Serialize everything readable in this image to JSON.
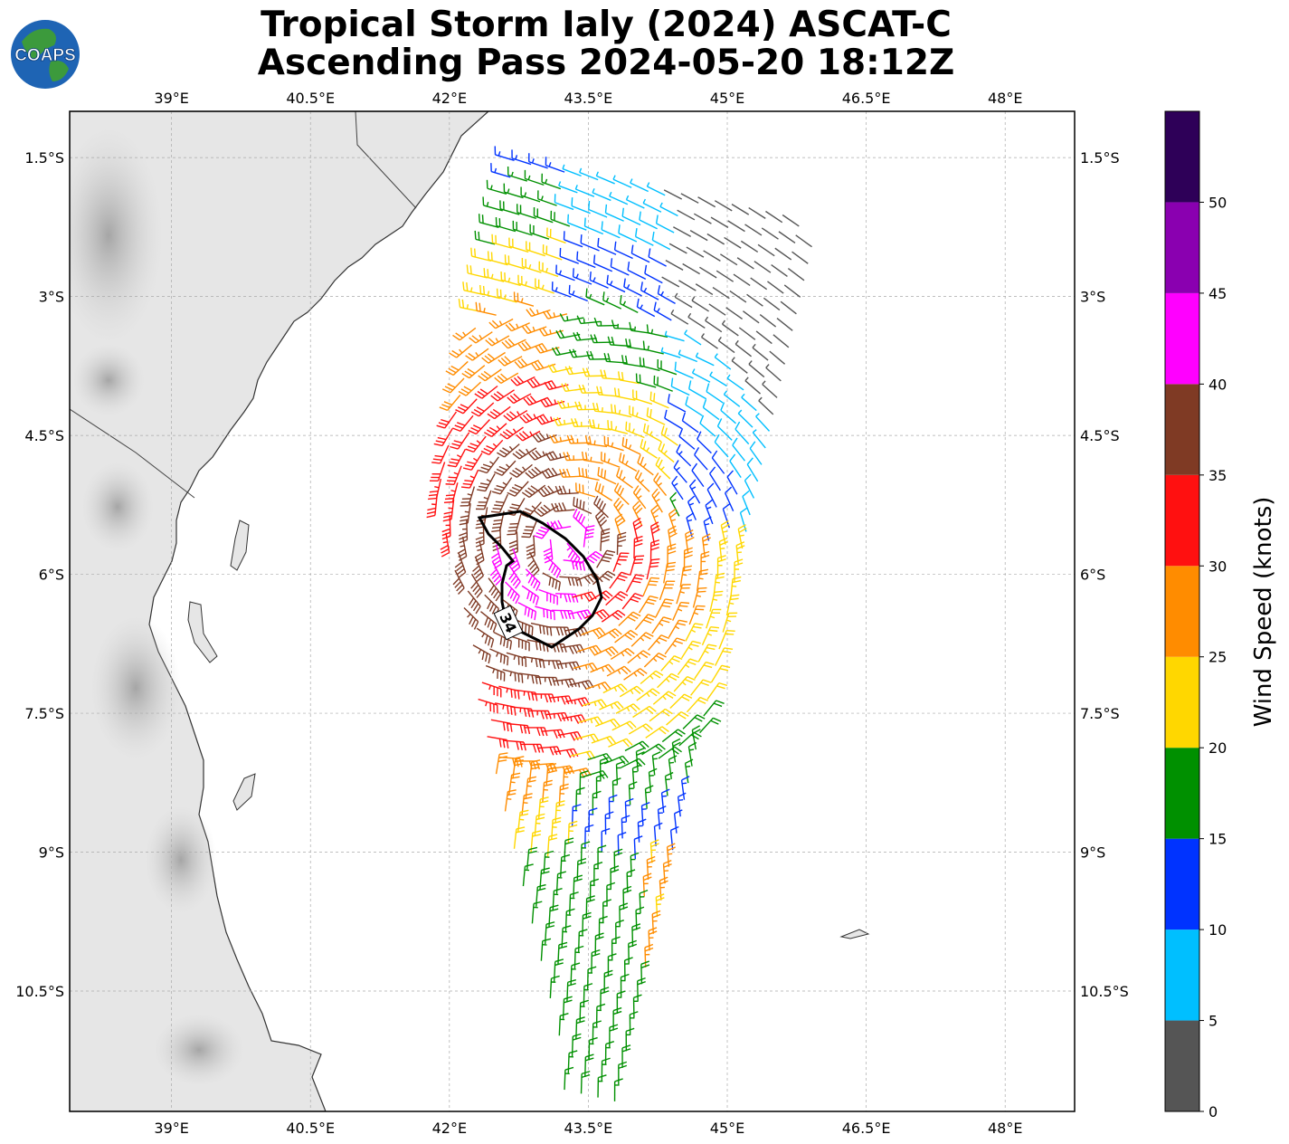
{
  "title": {
    "line1": "Tropical Storm Ialy (2024) ASCAT-C",
    "line2": "Ascending Pass 2024-05-20 18:12Z"
  },
  "logo": {
    "text": "COAPS"
  },
  "map": {
    "lon_range": [
      37.9,
      48.75
    ],
    "lat_range": [
      -11.8,
      -1.0
    ],
    "lon_ticks": [
      "39°E",
      "40.5°E",
      "42°E",
      "43.5°E",
      "45°E",
      "46.5°E",
      "48°E"
    ],
    "lat_ticks": [
      "1.5°S",
      "3°S",
      "4.5°S",
      "6°S",
      "7.5°S",
      "9°S",
      "10.5°S"
    ],
    "grid": true,
    "wind_radius_contour_label": "34"
  },
  "colorbar": {
    "label": "Wind Speed (knots)",
    "ticks": [
      "0",
      "5",
      "10",
      "15",
      "20",
      "25",
      "30",
      "35",
      "40",
      "45",
      "50"
    ],
    "bins": [
      {
        "min": 0,
        "max": 5,
        "color": "#555555"
      },
      {
        "min": 5,
        "max": 10,
        "color": "#00bfff"
      },
      {
        "min": 10,
        "max": 15,
        "color": "#0033ff"
      },
      {
        "min": 15,
        "max": 20,
        "color": "#009000"
      },
      {
        "min": 20,
        "max": 25,
        "color": "#ffd700"
      },
      {
        "min": 25,
        "max": 30,
        "color": "#ff8c00"
      },
      {
        "min": 30,
        "max": 35,
        "color": "#ff1010"
      },
      {
        "min": 35,
        "max": 40,
        "color": "#7f3a24"
      },
      {
        "min": 40,
        "max": 45,
        "color": "#ff00ff"
      },
      {
        "min": 45,
        "max": 50,
        "color": "#8a00b0"
      },
      {
        "min": 50,
        "max": 55,
        "color": "#2e0058"
      }
    ]
  },
  "storm_center": {
    "lon": 43.3,
    "lat": -5.65
  }
}
